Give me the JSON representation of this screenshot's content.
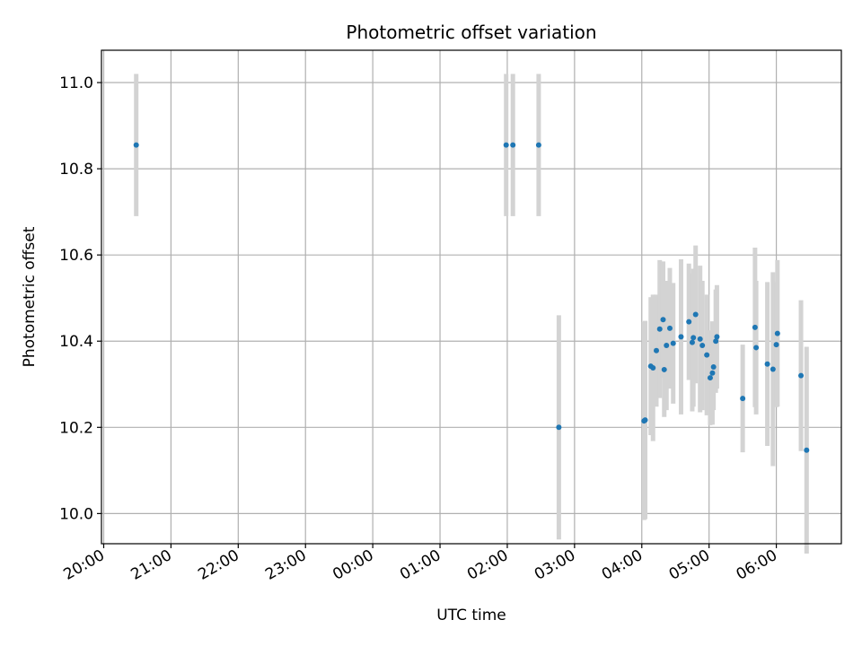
{
  "chart_data": {
    "type": "scatter",
    "title": "Photometric offset variation",
    "xlabel": "UTC time",
    "ylabel": "Photometric offset",
    "x_ticks": [
      "20:00",
      "21:00",
      "22:00",
      "23:00",
      "00:00",
      "01:00",
      "02:00",
      "03:00",
      "04:00",
      "05:00",
      "06:00"
    ],
    "x_tick_minutes": [
      0,
      60,
      120,
      180,
      240,
      300,
      360,
      420,
      480,
      540,
      600
    ],
    "xlim_minutes": [
      -2,
      658
    ],
    "y_ticks": [
      "10.0",
      "10.2",
      "10.4",
      "10.6",
      "10.8",
      "11.0"
    ],
    "y_tick_values": [
      10.0,
      10.2,
      10.4,
      10.6,
      10.8,
      11.0
    ],
    "ylim": [
      9.93,
      11.075
    ],
    "grid": true,
    "colors": {
      "point": "#1f77b4",
      "errorbar": "#d3d3d3",
      "grid": "#b0b0b0"
    },
    "points": [
      {
        "t": "20:29",
        "y": 10.855,
        "err": 0.165
      },
      {
        "t": "01:59",
        "y": 10.855,
        "err": 0.165
      },
      {
        "t": "02:05",
        "y": 10.855,
        "err": 0.165
      },
      {
        "t": "02:28",
        "y": 10.855,
        "err": 0.165
      },
      {
        "t": "02:46",
        "y": 10.2,
        "err": 0.26
      },
      {
        "t": "04:02",
        "y": 10.215,
        "err": 0.23
      },
      {
        "t": "04:03",
        "y": 10.217,
        "err": 0.23
      },
      {
        "t": "04:08",
        "y": 10.342,
        "err": 0.16
      },
      {
        "t": "04:10",
        "y": 10.338,
        "err": 0.17
      },
      {
        "t": "04:13",
        "y": 10.378,
        "err": 0.13
      },
      {
        "t": "04:16",
        "y": 10.428,
        "err": 0.16
      },
      {
        "t": "04:19",
        "y": 10.45,
        "err": 0.135
      },
      {
        "t": "04:20",
        "y": 10.334,
        "err": 0.11
      },
      {
        "t": "04:22",
        "y": 10.39,
        "err": 0.15
      },
      {
        "t": "04:25",
        "y": 10.43,
        "err": 0.14
      },
      {
        "t": "04:28",
        "y": 10.395,
        "err": 0.14
      },
      {
        "t": "04:35",
        "y": 10.41,
        "err": 0.18
      },
      {
        "t": "04:42",
        "y": 10.445,
        "err": 0.135
      },
      {
        "t": "04:45",
        "y": 10.397,
        "err": 0.16
      },
      {
        "t": "04:46",
        "y": 10.408,
        "err": 0.16
      },
      {
        "t": "04:48",
        "y": 10.462,
        "err": 0.16
      },
      {
        "t": "04:52",
        "y": 10.405,
        "err": 0.17
      },
      {
        "t": "04:54",
        "y": 10.39,
        "err": 0.15
      },
      {
        "t": "04:58",
        "y": 10.368,
        "err": 0.14
      },
      {
        "t": "05:01",
        "y": 10.315,
        "err": 0.11
      },
      {
        "t": "05:03",
        "y": 10.326,
        "err": 0.12
      },
      {
        "t": "05:04",
        "y": 10.34,
        "err": 0.1
      },
      {
        "t": "05:06",
        "y": 10.4,
        "err": 0.12
      },
      {
        "t": "05:07",
        "y": 10.41,
        "err": 0.12
      },
      {
        "t": "05:30",
        "y": 10.267,
        "err": 0.125
      },
      {
        "t": "05:41",
        "y": 10.432,
        "err": 0.185
      },
      {
        "t": "05:42",
        "y": 10.385,
        "err": 0.155
      },
      {
        "t": "05:52",
        "y": 10.347,
        "err": 0.19
      },
      {
        "t": "05:57",
        "y": 10.335,
        "err": 0.225
      },
      {
        "t": "06:00",
        "y": 10.392,
        "err": 0.145
      },
      {
        "t": "06:01",
        "y": 10.418,
        "err": 0.17
      },
      {
        "t": "06:22",
        "y": 10.32,
        "err": 0.175
      },
      {
        "t": "06:27",
        "y": 10.147,
        "err": 0.24
      }
    ]
  }
}
